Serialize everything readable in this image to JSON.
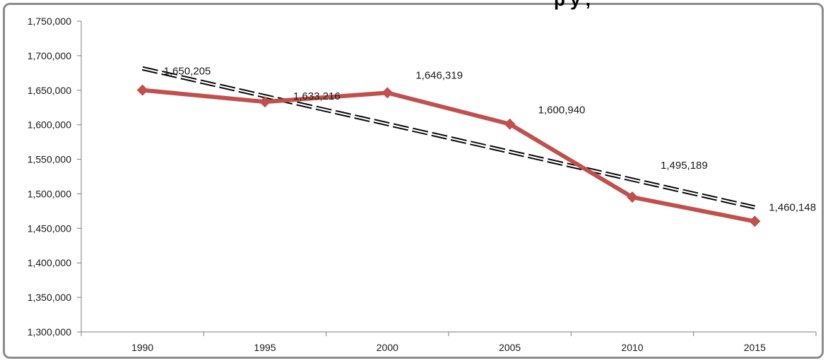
{
  "chart_data": {
    "type": "line",
    "title": "",
    "title_visible_fragment": "p                    y ,",
    "xlabel": "",
    "ylabel": "",
    "categories": [
      "1990",
      "1995",
      "2000",
      "2005",
      "2010",
      "2015"
    ],
    "series": [
      {
        "values": [
          1650205,
          1633216,
          1646319,
          1600940,
          1495189,
          1460148
        ],
        "labels": [
          "1,650,205",
          "1,633,216",
          "1,646,319",
          "1,600,940",
          "1,495,189",
          "1,460,148"
        ],
        "color": "#c0504d",
        "marker": "diamond"
      }
    ],
    "trendline": {
      "kind": "linear",
      "style": "double-dashed",
      "color": "#000000"
    },
    "ylim": [
      1300000,
      1750000
    ],
    "y_ticks": [
      "1,300,000",
      "1,350,000",
      "1,400,000",
      "1,450,000",
      "1,500,000",
      "1,550,000",
      "1,600,000",
      "1,650,000",
      "1,700,000",
      "1,750,000"
    ],
    "grid": false,
    "legend": "none"
  }
}
